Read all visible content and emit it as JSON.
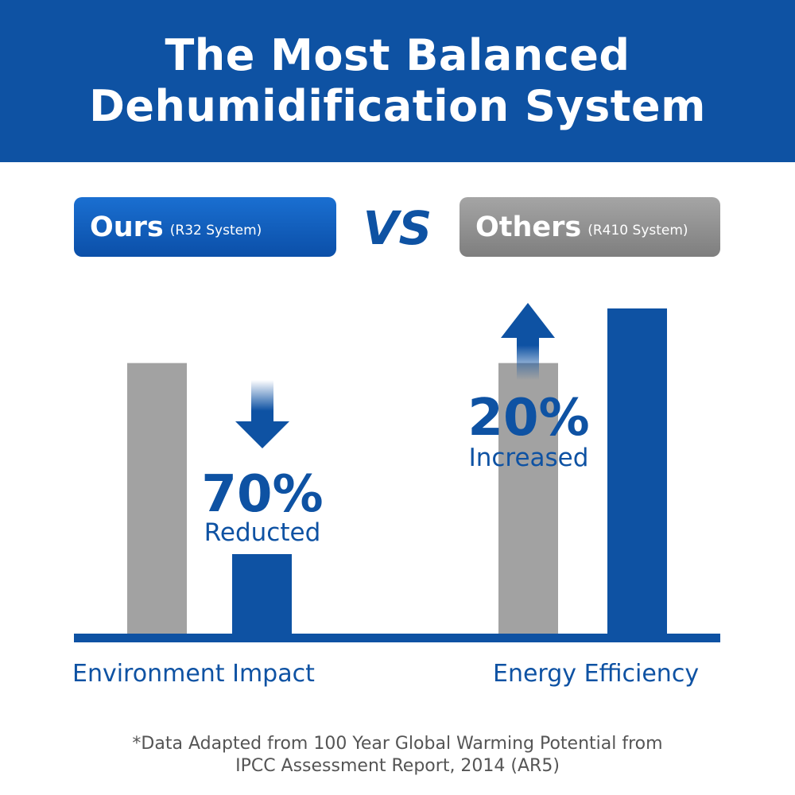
{
  "header": {
    "title_line1": "The Most Balanced",
    "title_line2": "Dehumidification System"
  },
  "comparison": {
    "ours_label": "Ours",
    "ours_sub": "(R32 System)",
    "vs_label": "VS",
    "others_label": "Others",
    "others_sub": "(R410 System)"
  },
  "callouts": {
    "env_percent": "70%",
    "env_word": "Reducted",
    "energy_percent": "20%",
    "energy_word": "Increased"
  },
  "footnote": {
    "line1": "*Data Adapted from 100 Year Global Warming Potential from",
    "line2": "IPCC Assessment Report, 2014 (AR5)"
  },
  "colors": {
    "brand_blue": "#0e52a3",
    "grey_bar": "#a2a2a2",
    "white": "#ffffff"
  },
  "chart_data": {
    "type": "bar",
    "categories": [
      "Environment Impact",
      "Energy Efficiency"
    ],
    "series": [
      {
        "values": [
          100,
          100
        ]
      },
      {
        "values": [
          30,
          120
        ]
      }
    ],
    "title": "",
    "xlabel": "",
    "ylabel": "",
    "ylim": [
      0,
      120
    ],
    "grid": false,
    "legend": "none"
  }
}
